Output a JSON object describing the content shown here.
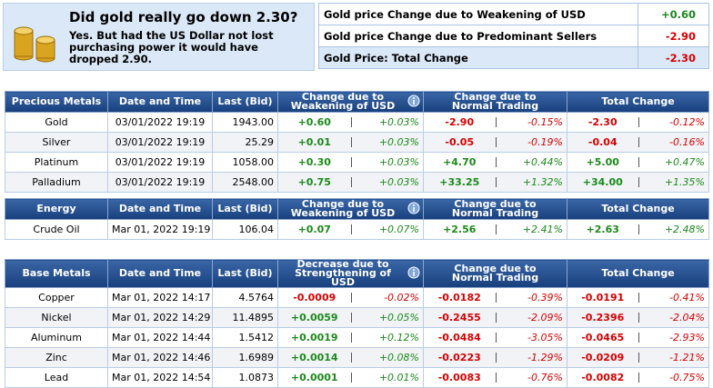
{
  "header": {
    "question": "Did gold really go down 2.30?",
    "text": "Yes. But had the US Dollar not lost purchasing power it would have dropped 2.90."
  },
  "summary": [
    [
      "Gold price Change due to Weakening of USD",
      "+0.60"
    ],
    [
      "Gold price Change due to Predominant Sellers",
      "-2.90"
    ],
    [
      "Gold Price: Total Change",
      "-2.30"
    ]
  ],
  "tables": [
    {
      "headers": [
        "Precious Metals",
        "Date and Time",
        "Last (Bid)",
        "Change due to Weakening of USD",
        "Change due to Normal Trading",
        "Total Change"
      ],
      "rows": [
        [
          "Gold",
          "03/01/2022 19:19",
          "1943.00",
          "+0.60",
          "+0.03%",
          "-2.90",
          "-0.15%",
          "-2.30",
          "-0.12%"
        ],
        [
          "Silver",
          "03/01/2022 19:19",
          "25.29",
          "+0.01",
          "+0.03%",
          "-0.05",
          "-0.19%",
          "-0.04",
          "-0.16%"
        ],
        [
          "Platinum",
          "03/01/2022 19:19",
          "1058.00",
          "+0.30",
          "+0.03%",
          "+4.70",
          "+0.44%",
          "+5.00",
          "+0.47%"
        ],
        [
          "Palladium",
          "03/01/2022 19:19",
          "2548.00",
          "+0.75",
          "+0.03%",
          "+33.25",
          "+1.32%",
          "+34.00",
          "+1.35%"
        ]
      ]
    },
    {
      "headers": [
        "Energy",
        "Date and Time",
        "Last (Bid)",
        "Change due to Weakening of USD",
        "Change due to Normal Trading",
        "Total Change"
      ],
      "rows": [
        [
          "Crude Oil",
          "Mar 01, 2022 19:19",
          "106.04",
          "+0.07",
          "+0.07%",
          "+2.56",
          "+2.41%",
          "+2.63",
          "+2.48%"
        ]
      ]
    },
    {
      "headers": [
        "Base Metals",
        "Date and Time",
        "Last (Bid)",
        "Decrease due to Strengthening of USD",
        "Change due to Normal Trading",
        "Total Change"
      ],
      "rows": [
        [
          "Copper",
          "Mar 01, 2022 14:17",
          "4.5764",
          "-0.0009",
          "-0.02%",
          "-0.0182",
          "-0.39%",
          "-0.0191",
          "-0.41%"
        ],
        [
          "Nickel",
          "Mar 01, 2022 14:29",
          "11.4895",
          "+0.0059",
          "+0.05%",
          "-0.2455",
          "-2.09%",
          "-0.2396",
          "-2.04%"
        ],
        [
          "Aluminum",
          "Mar 01, 2022 14:44",
          "1.5412",
          "+0.0019",
          "+0.12%",
          "-0.0484",
          "-3.05%",
          "-0.0465",
          "-2.93%"
        ],
        [
          "Zinc",
          "Mar 01, 2022 14:46",
          "1.6989",
          "+0.0014",
          "+0.08%",
          "-0.0223",
          "-1.29%",
          "-0.0209",
          "-1.21%"
        ],
        [
          "Lead",
          "Mar 01, 2022 14:54",
          "1.0873",
          "+0.0001",
          "+0.01%",
          "-0.0083",
          "-0.76%",
          "-0.0082",
          "-0.75%"
        ]
      ]
    }
  ]
}
